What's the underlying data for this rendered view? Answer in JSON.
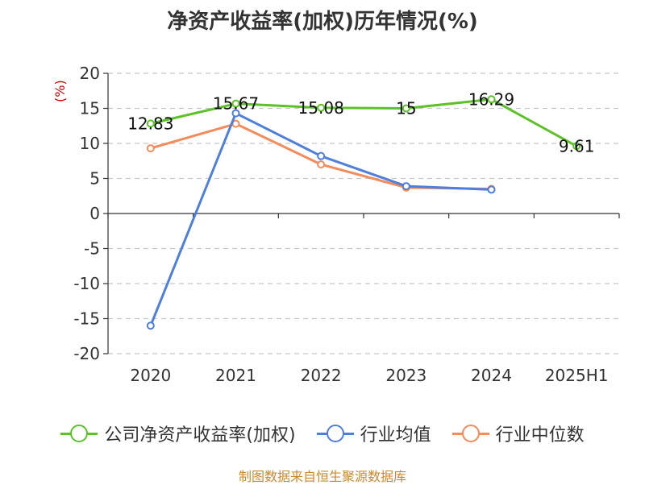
{
  "title": "净资产收益率(加权)历年情况(%)",
  "source": "制图数据来自恒生聚源数据库",
  "chart_data": {
    "type": "line",
    "title": "净资产收益率(加权)历年情况(%)",
    "ylabel": "(%)",
    "categories": [
      "2020",
      "2021",
      "2022",
      "2023",
      "2024",
      "2025H1"
    ],
    "ylim": [
      -20,
      20
    ],
    "yticks": [
      20,
      15,
      10,
      5,
      0,
      -5,
      -10,
      -15,
      -20
    ],
    "grid": true,
    "legend_position": "bottom",
    "series": [
      {
        "name": "公司净资产收益率(加权)",
        "color": "#5cc227",
        "values": [
          12.83,
          15.67,
          15.08,
          15,
          16.29,
          9.61
        ],
        "labels": [
          "12.83",
          "15.67",
          "15.08",
          "15",
          "16.29",
          "9.61"
        ]
      },
      {
        "name": "行业均值",
        "color": "#4f7fdc",
        "values": [
          -16,
          14.3,
          8.2,
          3.9,
          3.4,
          null
        ]
      },
      {
        "name": "行业中位数",
        "color": "#f48b5a",
        "values": [
          9.3,
          12.8,
          7.0,
          3.7,
          3.5,
          null
        ]
      }
    ]
  }
}
